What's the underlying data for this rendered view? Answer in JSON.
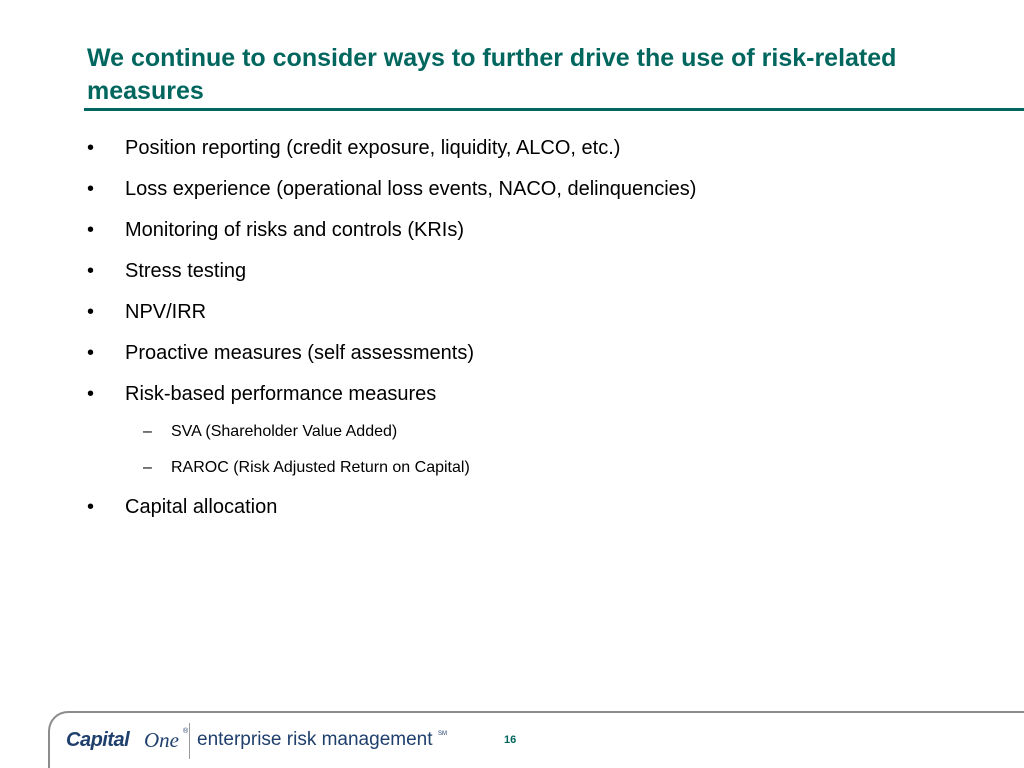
{
  "slide": {
    "title": "We continue to consider ways to further drive the use of risk-related measures",
    "bullets": [
      {
        "level": 1,
        "marker": "•",
        "text": "Position reporting (credit exposure, liquidity, ALCO, etc.)"
      },
      {
        "level": 1,
        "marker": "•",
        "text": "Loss experience (operational loss events, NACO, delinquencies)"
      },
      {
        "level": 1,
        "marker": "•",
        "text": "Monitoring of risks and controls (KRIs)"
      },
      {
        "level": 1,
        "marker": "•",
        "text": "Stress testing"
      },
      {
        "level": 1,
        "marker": "•",
        "text": "NPV/IRR"
      },
      {
        "level": 1,
        "marker": "•",
        "text": "Proactive measures (self assessments)"
      },
      {
        "level": 1,
        "marker": "•",
        "text": "Risk-based performance measures"
      },
      {
        "level": 2,
        "marker": "–",
        "text": "SVA (Shareholder Value Added)"
      },
      {
        "level": 2,
        "marker": "–",
        "text": "RAROC (Risk Adjusted Return on Capital)"
      },
      {
        "level": 1,
        "marker": "•",
        "text": "Capital allocation"
      }
    ]
  },
  "footer": {
    "brand_capital": "Capital",
    "brand_one": "One",
    "brand_registered": "®",
    "tagline": "enterprise risk management",
    "service_mark": "SM",
    "page_number": "16"
  },
  "colors": {
    "title": "#00665e",
    "rule": "#00665e",
    "body_text": "#000000",
    "brand_navy": "#1f3f6d",
    "footer_frame": "#8c8c8c"
  }
}
